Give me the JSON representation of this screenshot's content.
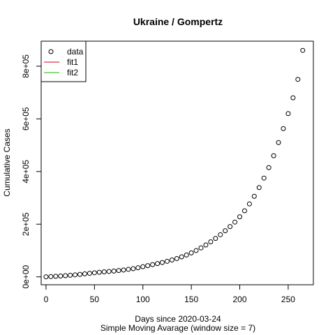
{
  "chart_data": {
    "type": "scatter",
    "title": "Ukraine / Gompertz",
    "xlabel": "Days since 2020-03-24",
    "xlabel_sub": "Simple Moving Avarage (window size = 7)",
    "ylabel": "Cumulative Cases",
    "xlim": [
      -5,
      276
    ],
    "ylim": [
      -30000,
      895000
    ],
    "xticks": [
      0,
      50,
      100,
      150,
      200,
      250
    ],
    "xtick_labels": [
      "0",
      "50",
      "100",
      "150",
      "200",
      "250"
    ],
    "yticks": [
      0,
      200000,
      400000,
      600000,
      800000
    ],
    "ytick_labels": [
      "0e+00",
      "2e+05",
      "4e+05",
      "6e+05",
      "8e+05"
    ],
    "grid": false,
    "legend_position": "top-left",
    "legend": [
      {
        "label": "data",
        "type": "point",
        "color": "#000000"
      },
      {
        "label": "fit1",
        "type": "line",
        "color": "#DF536B"
      },
      {
        "label": "fit2",
        "type": "line",
        "color": "#61D04F"
      }
    ],
    "series": [
      {
        "name": "data",
        "marker": "open-circle",
        "points": [
          [
            0,
            0
          ],
          [
            5,
            1000
          ],
          [
            10,
            2200
          ],
          [
            15,
            3200
          ],
          [
            20,
            4500
          ],
          [
            25,
            6000
          ],
          [
            30,
            7600
          ],
          [
            35,
            9500
          ],
          [
            40,
            11500
          ],
          [
            45,
            13500
          ],
          [
            50,
            15500
          ],
          [
            55,
            17300
          ],
          [
            60,
            19000
          ],
          [
            65,
            20500
          ],
          [
            70,
            22000
          ],
          [
            75,
            24000
          ],
          [
            80,
            26000
          ],
          [
            85,
            28500
          ],
          [
            90,
            31000
          ],
          [
            95,
            34500
          ],
          [
            100,
            38500
          ],
          [
            105,
            42500
          ],
          [
            110,
            46500
          ],
          [
            115,
            50500
          ],
          [
            120,
            54500
          ],
          [
            125,
            59000
          ],
          [
            130,
            64000
          ],
          [
            135,
            69500
          ],
          [
            140,
            76000
          ],
          [
            145,
            83000
          ],
          [
            150,
            91000
          ],
          [
            155,
            100000
          ],
          [
            160,
            110000
          ],
          [
            165,
            121000
          ],
          [
            170,
            133000
          ],
          [
            175,
            146000
          ],
          [
            180,
            160000
          ],
          [
            185,
            175000
          ],
          [
            190,
            191000
          ],
          [
            195,
            208000
          ],
          [
            200,
            228000
          ],
          [
            205,
            251000
          ],
          [
            210,
            277000
          ],
          [
            215,
            306000
          ],
          [
            220,
            339000
          ],
          [
            225,
            375000
          ],
          [
            230,
            415000
          ],
          [
            235,
            460000
          ],
          [
            240,
            510000
          ],
          [
            245,
            563000
          ],
          [
            250,
            620000
          ],
          [
            255,
            680000
          ],
          [
            260,
            750000
          ],
          [
            265,
            860000
          ]
        ]
      }
    ]
  }
}
